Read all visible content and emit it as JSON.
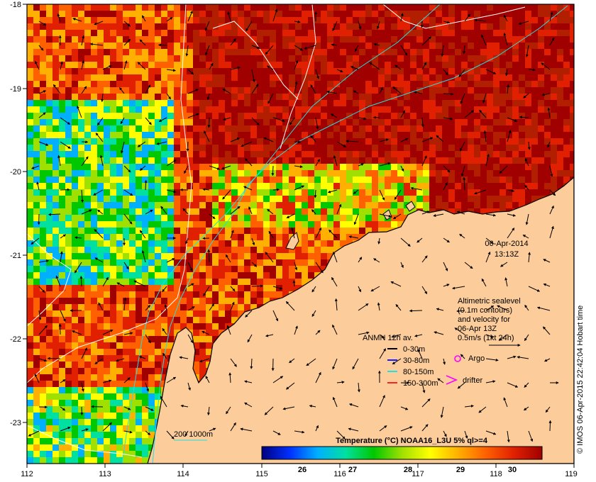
{
  "map": {
    "lon_ticks": [
      "112",
      "113",
      "114",
      "115",
      "116",
      "117",
      "118",
      "119"
    ],
    "lat_ticks": [
      "-18",
      "-19",
      "-20",
      "-21",
      "-22",
      "-23"
    ],
    "datetime_line1": "06-Apr-2014",
    "datetime_line2": "13:13Z"
  },
  "altimetry": {
    "lines": [
      "Altimetric sealevel",
      "(0.1m contours)",
      "and velocity for",
      "06-Apr 13Z",
      "0.5m/s (1kt 24h)"
    ]
  },
  "anmn": {
    "title": "ANMN 12h av.",
    "items": [
      {
        "label": "0-30m",
        "color": "#000000"
      },
      {
        "label": "30-80m",
        "color": "#1a1aff"
      },
      {
        "label": "80-150m",
        "color": "#22e0e0"
      },
      {
        "label": "150-300m",
        "color": "#ff2020"
      }
    ]
  },
  "markers": {
    "argo_label": "Argo",
    "argo_color": "#ff00ff",
    "drifter_label": "drifter",
    "drifter_color": "#ff00ff"
  },
  "bathymetry": {
    "label": "200  1000m"
  },
  "colorbar": {
    "title": "Temperature (°C) NOAA16_L3U 5% ql>=4",
    "ticks": [
      "26",
      "27",
      "28",
      "29",
      "30"
    ],
    "stops": [
      "#00007f",
      "#0030ff",
      "#00b0ff",
      "#00e0a0",
      "#00c800",
      "#a0e000",
      "#ffff00",
      "#ffb000",
      "#ff6000",
      "#e02000",
      "#a00000"
    ]
  },
  "credit": "© IMOS 06-Apr-2015 22:42:04 Hobart time",
  "colors": {
    "land": "#fccc9a",
    "warm_sea": "#b21e00"
  }
}
